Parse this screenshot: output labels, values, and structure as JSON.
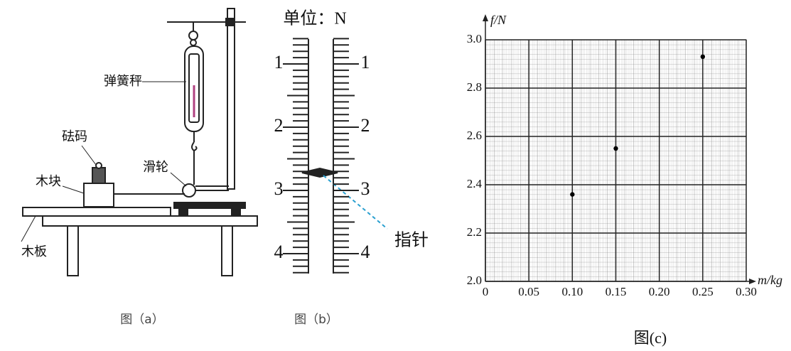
{
  "figure_a": {
    "labels": {
      "spring_scale": "弹簧秤",
      "weight": "砝码",
      "pulley": "滑轮",
      "block": "木块",
      "board": "木板"
    },
    "caption": "图（a）"
  },
  "figure_b": {
    "unit": "单位：N",
    "scale_left": [
      1,
      2,
      3,
      4
    ],
    "scale_right": [
      1,
      2,
      3,
      4
    ],
    "pointer": "指针",
    "caption": "图（b）"
  },
  "chart_data": {
    "type": "scatter",
    "x_label": "m/kg",
    "y_label": "f/N",
    "caption": "图(c)",
    "series": [
      {
        "color": "#000000",
        "x": [
          0.1,
          0.15,
          0.25
        ],
        "values": [
          2.36,
          2.55,
          2.93
        ]
      }
    ],
    "xlim": [
      0,
      0.3
    ],
    "ylim": [
      2.0,
      3.0
    ],
    "xticks": [
      0,
      0.05,
      {
        "value": 0.1,
        "label": "0.10"
      },
      0.15,
      {
        "value": 0.2,
        "label": "0.20"
      },
      0.25,
      {
        "value": 0.3,
        "label": "0.30"
      }
    ],
    "yticks": [
      {
        "value": 2,
        "label": "2.0"
      },
      2.2,
      2.4,
      2.6,
      2.8,
      {
        "value": 3,
        "label": "3.0"
      }
    ],
    "grid": true
  }
}
